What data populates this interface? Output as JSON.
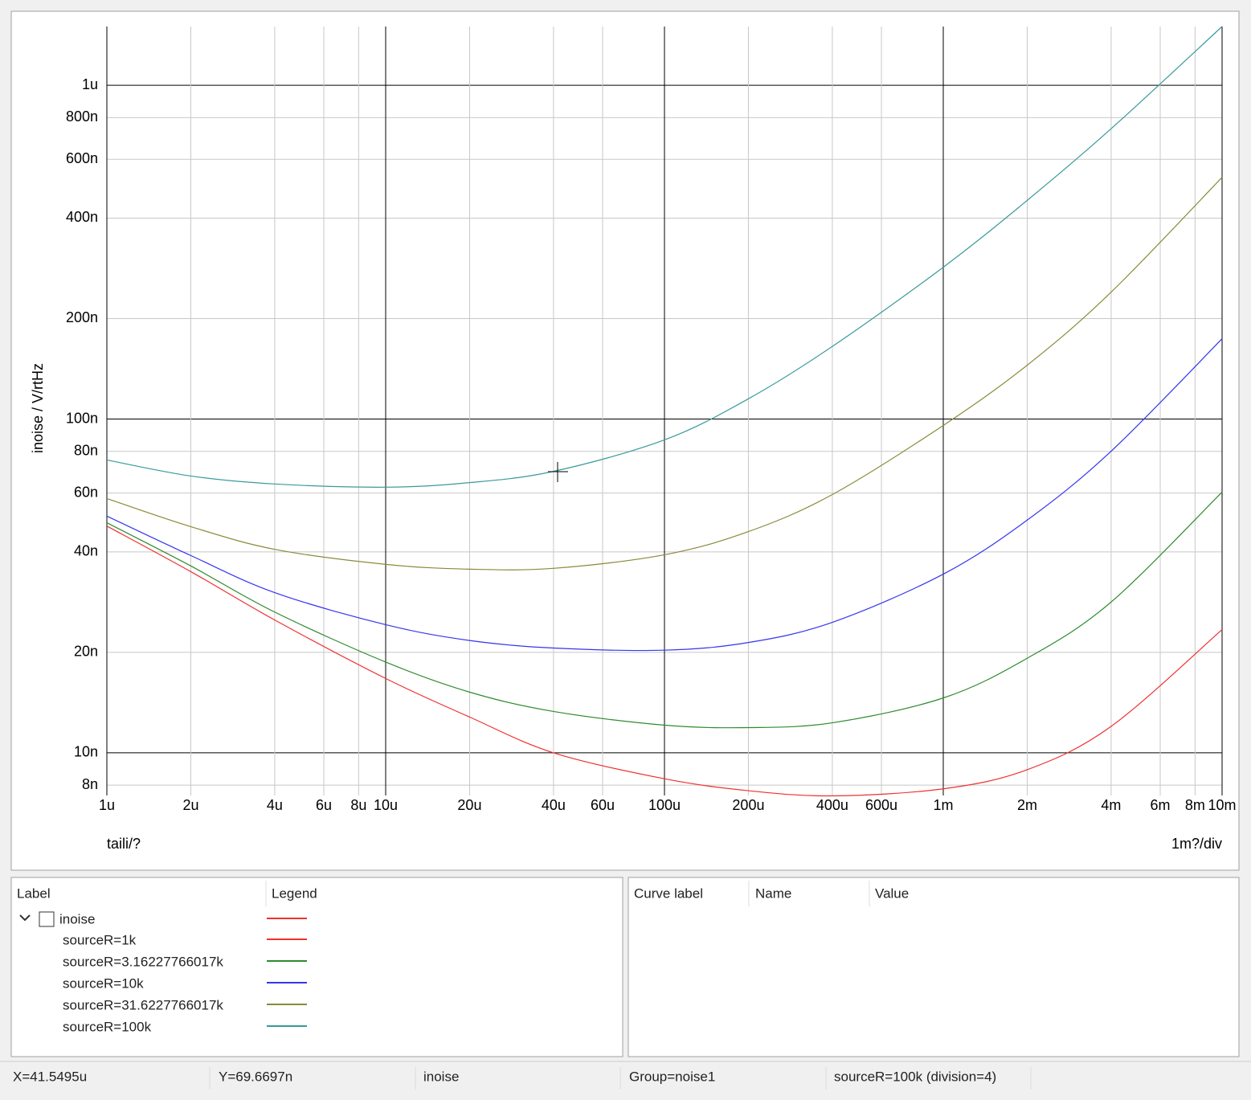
{
  "chart_data": {
    "type": "line",
    "y_label": "inoise / V/rtHz",
    "x_label": "taili/?",
    "x_division": "1m?/div",
    "log_x": true,
    "log_y": true,
    "grid": true,
    "x": [
      1e-06,
      2e-06,
      4e-06,
      1e-05,
      2e-05,
      4e-05,
      0.0001,
      0.0002,
      0.0004,
      0.001,
      0.002,
      0.004,
      0.01
    ],
    "series": [
      {
        "name": "sourceR=1k",
        "color": "#f03030",
        "values": [
          4.78e-08,
          3.49e-08,
          2.5e-08,
          1.67e-08,
          1.28e-08,
          1e-08,
          8.36e-09,
          7.7e-09,
          7.43e-09,
          7.8e-09,
          8.9e-09,
          1.2e-08,
          2.34e-08
        ]
      },
      {
        "name": "sourceR=3.16227766017k",
        "color": "#2e8b2e",
        "values": [
          4.89e-08,
          3.63e-08,
          2.64e-08,
          1.87e-08,
          1.52e-08,
          1.33e-08,
          1.21e-08,
          1.19e-08,
          1.23e-08,
          1.46e-08,
          1.92e-08,
          2.83e-08,
          6.04e-08
        ]
      },
      {
        "name": "sourceR=10k",
        "color": "#3535f0",
        "values": [
          5.12e-08,
          3.9e-08,
          3.02e-08,
          2.42e-08,
          2.17e-08,
          2.06e-08,
          2.03e-08,
          2.14e-08,
          2.46e-08,
          3.43e-08,
          4.98e-08,
          8.01e-08,
          1.74e-07
        ]
      },
      {
        "name": "sourceR=31.6227766017k",
        "color": "#8a8a3a",
        "values": [
          5.78e-08,
          4.76e-08,
          4.07e-08,
          3.67e-08,
          3.55e-08,
          3.57e-08,
          3.92e-08,
          4.6e-08,
          5.94e-08,
          9.57e-08,
          1.45e-07,
          2.4e-07,
          5.3e-07
        ]
      },
      {
        "name": "sourceR=100k",
        "color": "#3a9a9a",
        "values": [
          7.54e-08,
          6.75e-08,
          6.39e-08,
          6.25e-08,
          6.45e-08,
          6.97e-08,
          8.66e-08,
          1.15e-07,
          1.65e-07,
          2.85e-07,
          4.52e-07,
          7.41e-07,
          1.5e-06
        ]
      }
    ],
    "xlim": [
      1e-06,
      0.01
    ],
    "ylim": [
      7.45e-09,
      1.5e-06
    ],
    "xticks": [
      {
        "value": 1e-06,
        "label": "1u"
      },
      {
        "value": 2e-06,
        "label": "2u"
      },
      {
        "value": 4e-06,
        "label": "4u"
      },
      {
        "value": 6e-06,
        "label": "6u"
      },
      {
        "value": 8e-06,
        "label": "8u"
      },
      {
        "value": 1e-05,
        "label": "10u"
      },
      {
        "value": 2e-05,
        "label": "20u"
      },
      {
        "value": 4e-05,
        "label": "40u"
      },
      {
        "value": 6e-05,
        "label": "60u"
      },
      {
        "value": 0.0001,
        "label": "100u"
      },
      {
        "value": 0.0002,
        "label": "200u"
      },
      {
        "value": 0.0004,
        "label": "400u"
      },
      {
        "value": 0.0006,
        "label": "600u"
      },
      {
        "value": 0.001,
        "label": "1m"
      },
      {
        "value": 0.002,
        "label": "2m"
      },
      {
        "value": 0.004,
        "label": "4m"
      },
      {
        "value": 0.006,
        "label": "6m"
      },
      {
        "value": 0.008,
        "label": "8m"
      },
      {
        "value": 0.01,
        "label": "10m"
      }
    ],
    "yticks": [
      {
        "value": 8e-09,
        "label": "8n"
      },
      {
        "value": 1e-08,
        "label": "10n"
      },
      {
        "value": 2e-08,
        "label": "20n"
      },
      {
        "value": 4e-08,
        "label": "40n"
      },
      {
        "value": 6e-08,
        "label": "60n"
      },
      {
        "value": 8e-08,
        "label": "80n"
      },
      {
        "value": 1e-07,
        "label": "100n"
      },
      {
        "value": 2e-07,
        "label": "200n"
      },
      {
        "value": 4e-07,
        "label": "400n"
      },
      {
        "value": 6e-07,
        "label": "600n"
      },
      {
        "value": 8e-07,
        "label": "800n"
      },
      {
        "value": 1e-06,
        "label": "1u"
      }
    ]
  },
  "legend_panel": {
    "headers": [
      "Label",
      "Legend"
    ],
    "group": "inoise"
  },
  "values_panel": {
    "headers": [
      "Curve label",
      "Name",
      "Value"
    ]
  },
  "status_bar": [
    "X=41.5495u",
    "Y=69.6697n",
    "inoise",
    "Group=noise1",
    "sourceR=100k (division=4)"
  ]
}
